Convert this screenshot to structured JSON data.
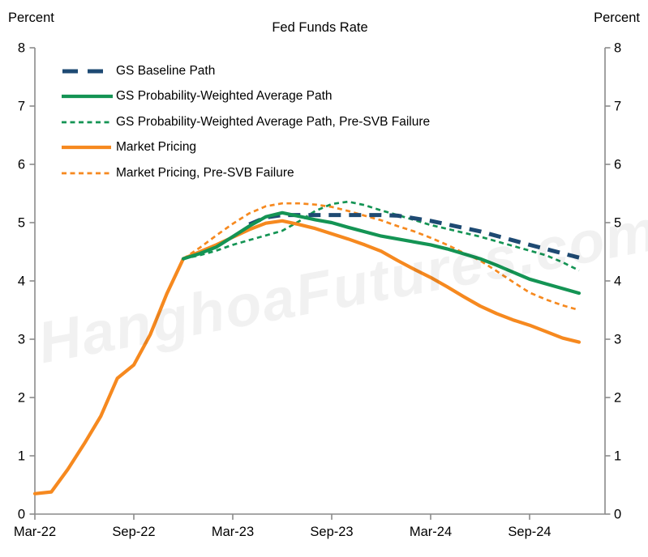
{
  "watermark": "HanghoaFutures.com",
  "chart_data": {
    "type": "line",
    "title": "Fed Funds Rate",
    "y_axis_label_left": "Percent",
    "y_axis_label_right": "Percent",
    "ylim": [
      0,
      8
    ],
    "y_ticks": [
      0,
      1,
      2,
      3,
      4,
      5,
      6,
      7,
      8
    ],
    "x_tick_labels": [
      "Mar-22",
      "Sep-22",
      "Mar-23",
      "Sep-23",
      "Mar-24",
      "Sep-24"
    ],
    "x_tick_months": [
      0,
      6,
      12,
      18,
      24,
      30
    ],
    "grid": false,
    "legend_position": "top-left",
    "series": [
      {
        "name": "GS Baseline Path",
        "color": "#1E4A73",
        "style": "dash-long",
        "points_unit": "[months since Mar-2022, percent]",
        "points": [
          [
            13,
            4.97
          ],
          [
            14,
            5.09
          ],
          [
            15,
            5.13
          ],
          [
            21,
            5.13
          ],
          [
            22,
            5.12
          ],
          [
            24,
            5.03
          ],
          [
            27,
            4.85
          ],
          [
            30,
            4.62
          ],
          [
            33,
            4.4
          ]
        ]
      },
      {
        "name": "GS Probability-Weighted Average Path",
        "color": "#149454",
        "style": "solid",
        "points_unit": "[months since Mar-2022, percent]",
        "points": [
          [
            9,
            4.38
          ],
          [
            10,
            4.47
          ],
          [
            11,
            4.58
          ],
          [
            12,
            4.76
          ],
          [
            13,
            4.94
          ],
          [
            14,
            5.1
          ],
          [
            15,
            5.17
          ],
          [
            16,
            5.11
          ],
          [
            17,
            5.05
          ],
          [
            18,
            5.0
          ],
          [
            19,
            4.92
          ],
          [
            21,
            4.77
          ],
          [
            24,
            4.62
          ],
          [
            25,
            4.55
          ],
          [
            27,
            4.38
          ],
          [
            28,
            4.27
          ],
          [
            30,
            4.03
          ],
          [
            31,
            3.95
          ],
          [
            33,
            3.79
          ]
        ]
      },
      {
        "name": "GS Probability-Weighted Average Path, Pre-SVB Failure",
        "color": "#149454",
        "style": "dash-short",
        "points_unit": "[months since Mar-2022, percent]",
        "points": [
          [
            9,
            4.38
          ],
          [
            10,
            4.44
          ],
          [
            11,
            4.52
          ],
          [
            12,
            4.62
          ],
          [
            13,
            4.7
          ],
          [
            14,
            4.78
          ],
          [
            15,
            4.86
          ],
          [
            16,
            5.02
          ],
          [
            17,
            5.2
          ],
          [
            18,
            5.32
          ],
          [
            19,
            5.36
          ],
          [
            20,
            5.3
          ],
          [
            21,
            5.21
          ],
          [
            22,
            5.13
          ],
          [
            24,
            4.96
          ],
          [
            27,
            4.76
          ],
          [
            30,
            4.52
          ],
          [
            31,
            4.44
          ],
          [
            32,
            4.32
          ],
          [
            33,
            4.18
          ]
        ]
      },
      {
        "name": "Market Pricing",
        "color": "#F6891F",
        "style": "solid",
        "points_unit": "[months since Mar-2022, percent]",
        "points": [
          [
            0,
            0.35
          ],
          [
            1,
            0.38
          ],
          [
            2,
            0.77
          ],
          [
            3,
            1.21
          ],
          [
            4,
            1.68
          ],
          [
            5,
            2.33
          ],
          [
            6,
            2.56
          ],
          [
            7,
            3.08
          ],
          [
            8,
            3.78
          ],
          [
            9,
            4.38
          ],
          [
            10,
            4.5
          ],
          [
            11,
            4.62
          ],
          [
            12,
            4.75
          ],
          [
            13,
            4.88
          ],
          [
            14,
            4.99
          ],
          [
            15,
            5.03
          ],
          [
            16,
            4.97
          ],
          [
            17,
            4.9
          ],
          [
            18,
            4.81
          ],
          [
            19,
            4.72
          ],
          [
            20,
            4.62
          ],
          [
            21,
            4.51
          ],
          [
            22,
            4.35
          ],
          [
            23,
            4.2
          ],
          [
            24,
            4.06
          ],
          [
            25,
            3.9
          ],
          [
            26,
            3.73
          ],
          [
            27,
            3.57
          ],
          [
            28,
            3.44
          ],
          [
            29,
            3.33
          ],
          [
            30,
            3.24
          ],
          [
            31,
            3.13
          ],
          [
            32,
            3.02
          ],
          [
            33,
            2.95
          ]
        ]
      },
      {
        "name": "Market Pricing, Pre-SVB Failure",
        "color": "#F6891F",
        "style": "dash-short",
        "points_unit": "[months since Mar-2022, percent]",
        "points": [
          [
            9,
            4.38
          ],
          [
            10,
            4.57
          ],
          [
            11,
            4.78
          ],
          [
            12,
            4.98
          ],
          [
            13,
            5.16
          ],
          [
            14,
            5.28
          ],
          [
            15,
            5.33
          ],
          [
            16,
            5.33
          ],
          [
            17,
            5.31
          ],
          [
            18,
            5.27
          ],
          [
            19,
            5.2
          ],
          [
            20,
            5.12
          ],
          [
            21,
            5.04
          ],
          [
            22,
            4.94
          ],
          [
            23,
            4.85
          ],
          [
            24,
            4.74
          ],
          [
            25,
            4.62
          ],
          [
            26,
            4.48
          ],
          [
            27,
            4.35
          ],
          [
            28,
            4.17
          ],
          [
            29,
            3.98
          ],
          [
            30,
            3.8
          ],
          [
            31,
            3.68
          ],
          [
            32,
            3.58
          ],
          [
            33,
            3.5
          ]
        ]
      }
    ]
  }
}
